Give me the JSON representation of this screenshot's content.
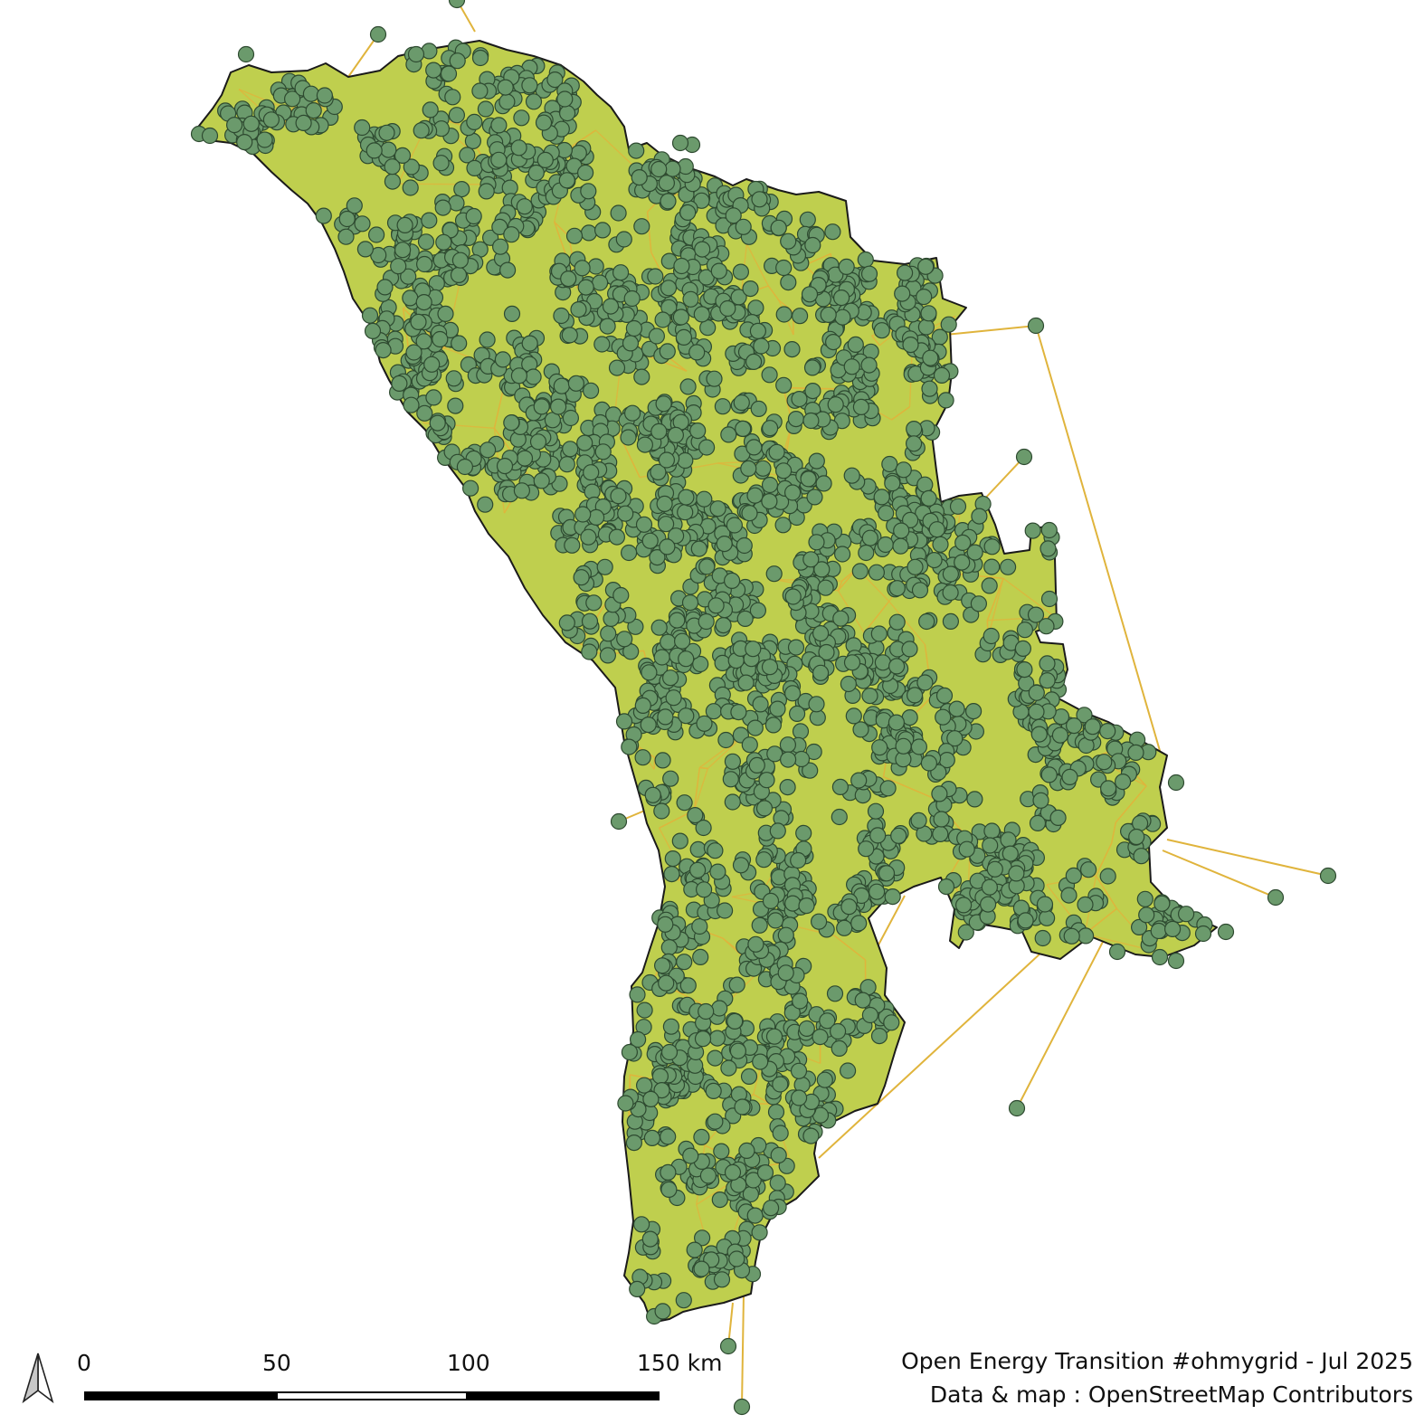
{
  "map": {
    "country_fill": "#bfcf4e",
    "country_stroke": "#1a1a1a",
    "line_color": "#e0b43c",
    "node_fill": "#6b9a6c",
    "node_stroke": "#2e4a30"
  },
  "north_arrow": {
    "icon": "north-arrow-icon"
  },
  "scale_bar": {
    "labels": [
      "0",
      "50",
      "100",
      "150 km"
    ]
  },
  "credits": {
    "line1": "Open Energy Transition #ohmygrid - Jul 2025",
    "line2": "Data & map : OpenStreetMap Contributors"
  }
}
